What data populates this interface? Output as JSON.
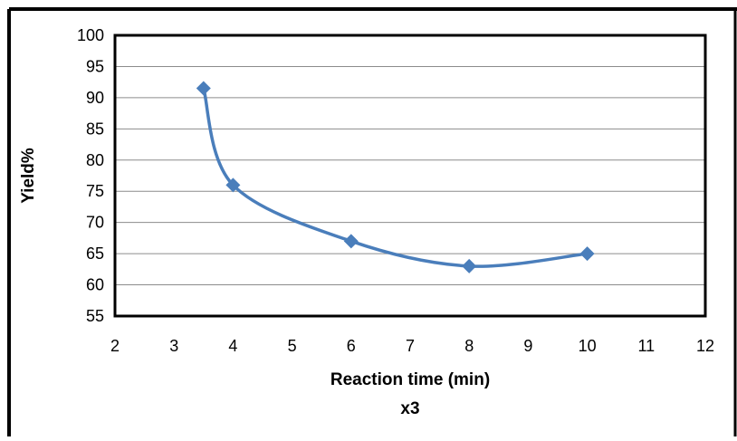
{
  "chart_data": {
    "type": "line",
    "title": "",
    "xlabel": "Reaction time (min)",
    "xlabel_sub": "x3",
    "ylabel": "Yield%",
    "xlim": [
      2,
      12
    ],
    "ylim": [
      55,
      100
    ],
    "x_ticks": [
      2,
      3,
      4,
      5,
      6,
      7,
      8,
      9,
      10,
      11,
      12
    ],
    "y_ticks": [
      55,
      60,
      65,
      70,
      75,
      80,
      85,
      90,
      95,
      100
    ],
    "grid": "horizontal",
    "legend": "none",
    "smooth": true,
    "series": [
      {
        "color": "#4a7ebb",
        "marker": "diamond",
        "points": [
          {
            "x": 3.5,
            "y": 91.5
          },
          {
            "x": 4,
            "y": 76
          },
          {
            "x": 6,
            "y": 67
          },
          {
            "x": 8,
            "y": 63
          },
          {
            "x": 10,
            "y": 65
          }
        ]
      }
    ]
  }
}
